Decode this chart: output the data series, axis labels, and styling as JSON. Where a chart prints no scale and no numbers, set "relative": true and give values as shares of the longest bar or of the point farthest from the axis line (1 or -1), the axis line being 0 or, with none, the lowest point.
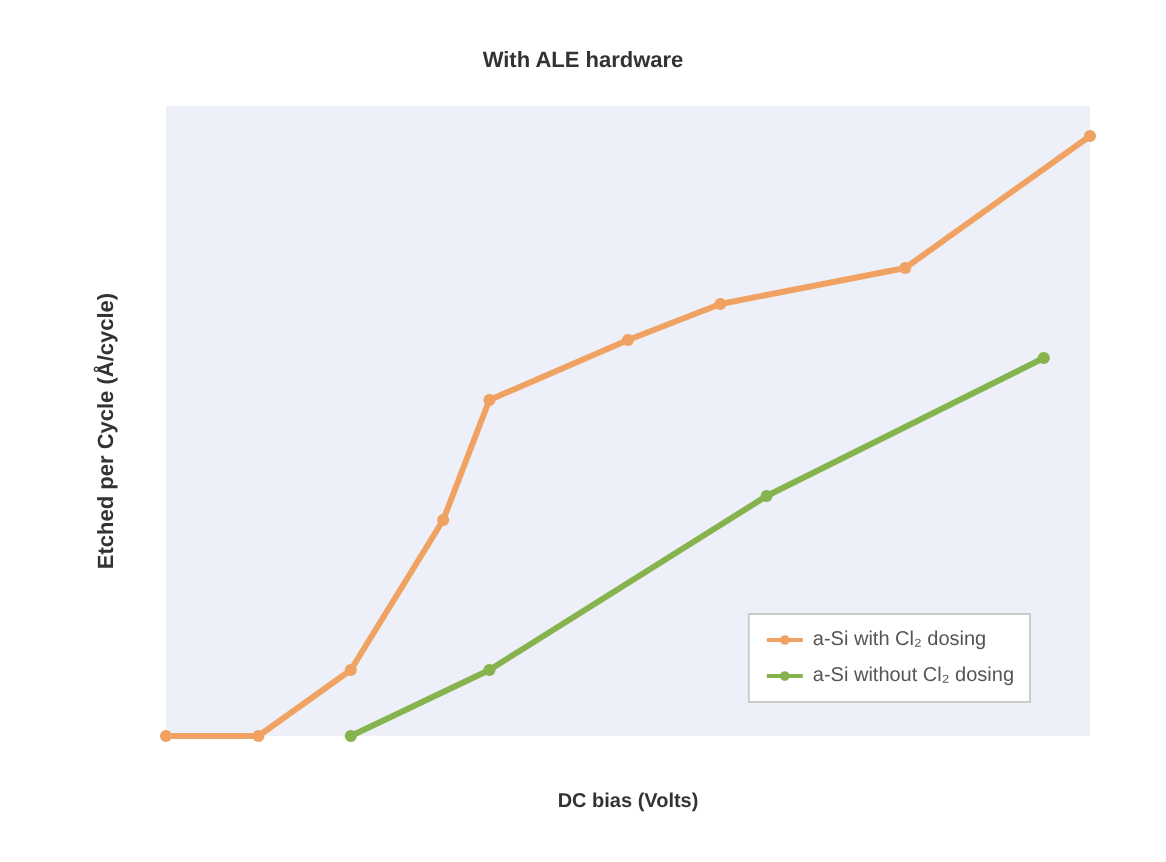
{
  "chart_data": {
    "type": "line",
    "title": "With ALE hardware",
    "xlabel": "DC bias (Volts)",
    "ylabel": "Etched per Cycle (Å/cycle)",
    "relative": true,
    "grid": false,
    "legend": "bottom right",
    "marker": "circle",
    "line_style": "solid",
    "categories": [
      null,
      null,
      null,
      null,
      null,
      null,
      null,
      null,
      null,
      null,
      null,
      null,
      null,
      null,
      null,
      null,
      null,
      null,
      null,
      null,
      null
    ],
    "series": [
      {
        "name": "a-Si with Cl₂ dosing",
        "color": "#f0a262",
        "values": [
          0,
          null,
          0,
          null,
          0.11,
          null,
          0.36,
          0.56,
          null,
          null,
          0.66,
          null,
          0.72,
          null,
          null,
          null,
          0.78,
          null,
          null,
          null,
          1
        ]
      },
      {
        "name": "a-Si without Cl₂ dosing",
        "color": "#86b34e",
        "values": [
          null,
          null,
          null,
          null,
          0,
          null,
          null,
          0.11,
          null,
          null,
          null,
          null,
          null,
          0.4,
          null,
          null,
          null,
          null,
          null,
          0.63,
          null
        ]
      }
    ]
  }
}
